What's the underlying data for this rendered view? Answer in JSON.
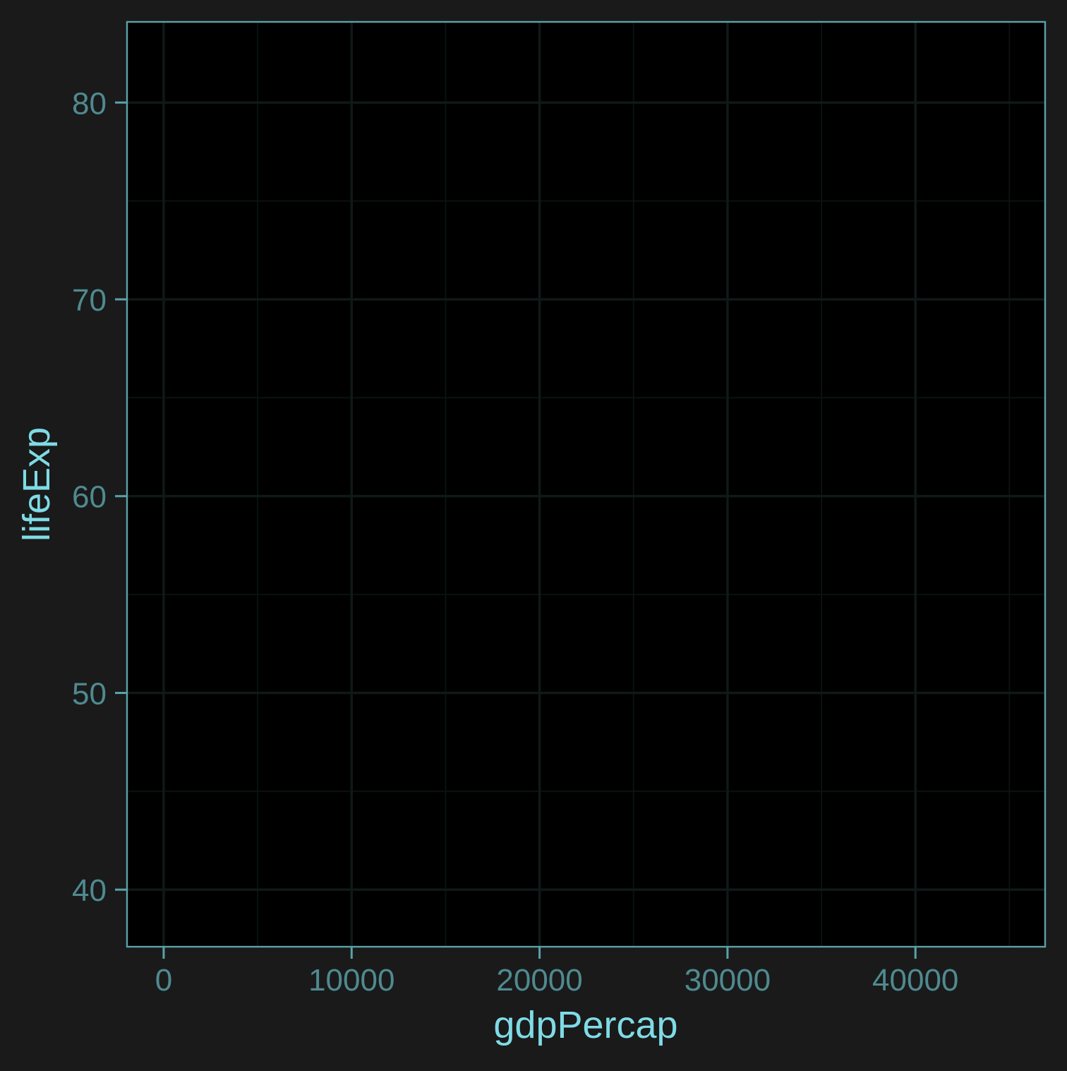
{
  "chart_data": {
    "type": "scatter",
    "title": "",
    "xlabel": "gdpPercap",
    "ylabel": "lifeExp",
    "xlim": [
      -1950,
      46900
    ],
    "ylim": [
      37.1,
      84.1
    ],
    "x_ticks": [
      0,
      10000,
      20000,
      30000,
      40000
    ],
    "x_tick_labels": [
      "0",
      "10000",
      "20000",
      "30000",
      "40000"
    ],
    "y_ticks": [
      40,
      50,
      60,
      70,
      80
    ],
    "y_tick_labels": [
      "40",
      "50",
      "60",
      "70",
      "80"
    ],
    "x_minor_ticks": [
      5000,
      15000,
      25000,
      35000,
      45000
    ],
    "y_minor_ticks": [
      45,
      55,
      65,
      75
    ],
    "grid": true,
    "series": [],
    "colors": {
      "page_background": "#1a1a1a",
      "panel_background": "#000000",
      "panel_border": "#5aa2a9",
      "grid_major": "#0f1918",
      "grid_minor": "#0a1211",
      "tick_label": "#4f8a90",
      "axis_title": "#7fdbe6"
    }
  }
}
